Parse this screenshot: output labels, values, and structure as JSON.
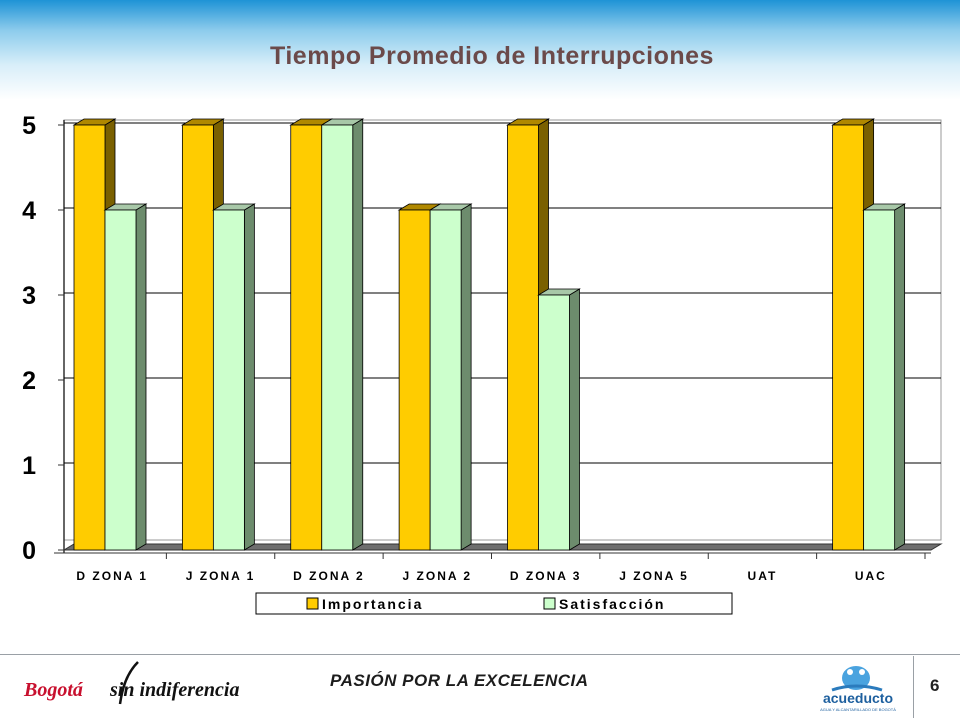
{
  "slide": {
    "title": "Tiempo Promedio de Interrupciones",
    "footer_slogan": "PASIÓN POR LA EXCELENCIA",
    "page_number": "6"
  },
  "logos": {
    "left_text_a": "Bogotá",
    "left_text_b": "sin indiferencia",
    "right_text": "acueducto",
    "right_subtext": "AGUA Y ALCANTARILLADO DE BOGOTÁ"
  },
  "colors": {
    "importancia": "#FFCC00",
    "satisfaccion": "#CCFFCC",
    "title": "#6b4a4a"
  },
  "chart_data": {
    "type": "bar",
    "style": "3d-clustered",
    "title": "Tiempo Promedio de Interrupciones",
    "categories": [
      "D ZONA 1",
      "J ZONA 1",
      "D ZONA 2",
      "J ZONA 2",
      "D ZONA 3",
      "J ZONA 5",
      "UAT",
      "UAC"
    ],
    "series": [
      {
        "name": "Importancia",
        "values": [
          5,
          5,
          5,
          4,
          5,
          null,
          null,
          5
        ]
      },
      {
        "name": "Satisfacción",
        "values": [
          4,
          4,
          5,
          4,
          3,
          null,
          null,
          4
        ]
      }
    ],
    "ylim": [
      0,
      5
    ],
    "yticks": [
      "0",
      "1",
      "2",
      "3",
      "4",
      "5"
    ],
    "grid": true,
    "legend": "bottom"
  }
}
